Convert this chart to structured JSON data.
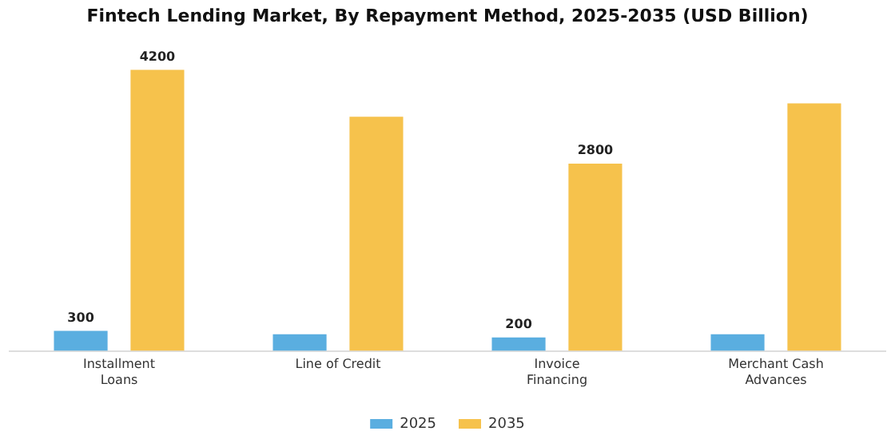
{
  "chart_data": {
    "type": "bar",
    "title": "Fintech Lending Market, By Repayment Method, 2025-2035 (USD Billion)",
    "categories": [
      "Installment Loans",
      "Line of Credit",
      "Invoice Financing",
      "Merchant Cash Advances"
    ],
    "series": [
      {
        "name": "2025",
        "color": "#5aaee0",
        "values": [
          300,
          250,
          200,
          250
        ],
        "value_labels": [
          "300",
          null,
          "200",
          null
        ]
      },
      {
        "name": "2035",
        "color": "#f6c24c",
        "values": [
          4200,
          3500,
          2800,
          3700
        ],
        "value_labels": [
          "4200",
          null,
          "2800",
          null
        ]
      }
    ],
    "tick_labels": "x",
    "grid": false,
    "legend": "bottom"
  }
}
